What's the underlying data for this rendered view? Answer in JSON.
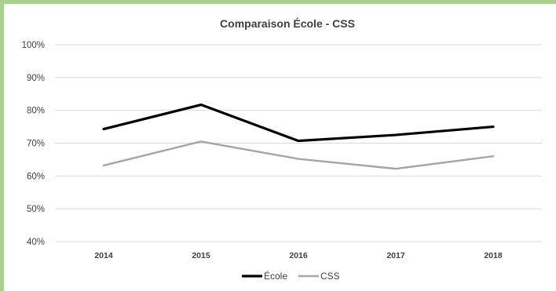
{
  "chart_data": {
    "type": "line",
    "title": "Comparaison École - CSS",
    "categories": [
      "2014",
      "2015",
      "2016",
      "2017",
      "2018"
    ],
    "yticks": [
      "100%",
      "90%",
      "80%",
      "70%",
      "60%",
      "50%",
      "40%"
    ],
    "ylim": [
      40,
      100
    ],
    "y_unit": "%",
    "grid": true,
    "legend_position": "bottom",
    "series": [
      {
        "name": "École",
        "values": [
          74.3,
          81.7,
          70.7,
          72.5,
          75.0
        ],
        "color": "#000000"
      },
      {
        "name": "CSS",
        "values": [
          63.2,
          70.5,
          65.2,
          62.2,
          66.0
        ],
        "color": "#a6a6a6"
      }
    ]
  }
}
